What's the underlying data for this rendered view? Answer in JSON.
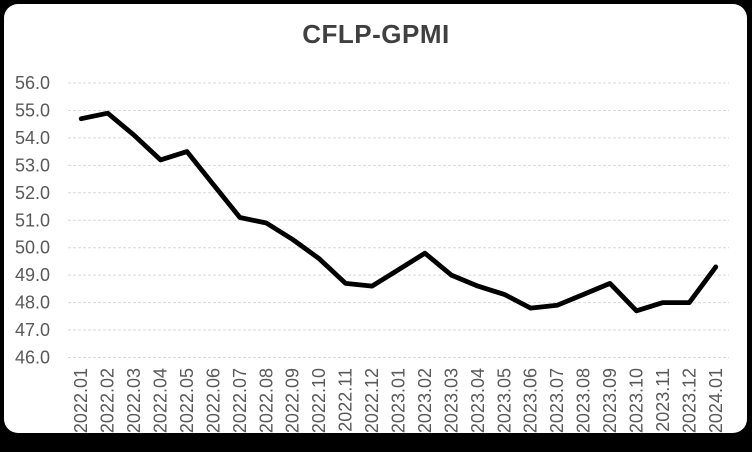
{
  "colors": {
    "frame_background": "#000000",
    "card_background": "#ffffff",
    "title_color": "#404040",
    "axis_label_color": "#595959",
    "gridline_color": "#d9d9d9",
    "line_color": "#000000"
  },
  "chart_data": {
    "type": "line",
    "title": "CFLP-GPMI",
    "categories": [
      "2022.01",
      "2022.02",
      "2022.03",
      "2022.04",
      "2022.05",
      "2022.06",
      "2022.07",
      "2022.08",
      "2022.09",
      "2022.10",
      "2022.11",
      "2022.12",
      "2023.01",
      "2023.02",
      "2023.03",
      "2023.04",
      "2023.05",
      "2023.06",
      "2023.07",
      "2023.08",
      "2023.09",
      "2023.10",
      "2023.11",
      "2023.12",
      "2024.01"
    ],
    "values": [
      54.7,
      54.9,
      54.1,
      53.2,
      53.5,
      52.3,
      51.1,
      50.9,
      50.3,
      49.6,
      48.7,
      48.6,
      49.2,
      49.8,
      49.0,
      48.6,
      48.3,
      47.8,
      47.9,
      48.3,
      48.7,
      47.7,
      48.0,
      48.0,
      49.3
    ],
    "xlabel": "",
    "ylabel": "",
    "ylim": [
      46.0,
      56.0
    ],
    "ytick_step": 1.0,
    "ytick_labels": [
      "56.0",
      "55.0",
      "54.0",
      "53.0",
      "52.0",
      "51.0",
      "50.0",
      "49.0",
      "48.0",
      "47.0",
      "46.0"
    ],
    "grid": true,
    "gridline_style": "dashed",
    "legend": "none",
    "x_label_rotation_deg": 90
  }
}
